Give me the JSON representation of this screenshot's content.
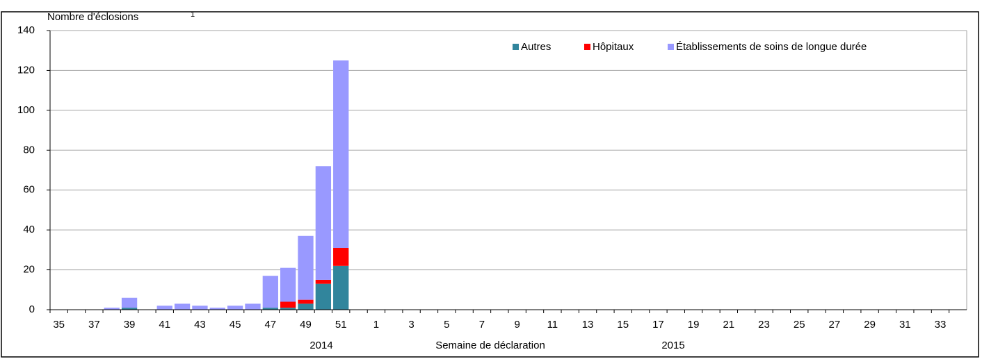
{
  "chart_data": {
    "type": "stacked_bar",
    "y_label": "Nombre d'éclosions",
    "y_label_note": "1",
    "x_label": "Semaine de déclaration",
    "year_labels": [
      "2014",
      "2015"
    ],
    "categories": [
      "35",
      null,
      "37",
      null,
      "39",
      null,
      "41",
      null,
      "43",
      null,
      "45",
      null,
      "47",
      null,
      "49",
      null,
      "51",
      null,
      "1",
      null,
      "3",
      null,
      "5",
      null,
      "7",
      null,
      "9",
      null,
      "11",
      null,
      "13",
      null,
      "15",
      null,
      "17",
      null,
      "19",
      null,
      "21",
      null,
      "23",
      null,
      "25",
      null,
      "27",
      null,
      "29",
      null,
      "31",
      null,
      "33",
      null
    ],
    "series": [
      {
        "name": "Autres",
        "color": "#31859c",
        "values": [
          0,
          0,
          0,
          0,
          1,
          0,
          0,
          0,
          0,
          0,
          0,
          0,
          1,
          1,
          3,
          13,
          22,
          null,
          null,
          null,
          null,
          null,
          null,
          null,
          null,
          null,
          null,
          null,
          null,
          null,
          null,
          null,
          null,
          null,
          null,
          null,
          null,
          null,
          null,
          null,
          null,
          null,
          null,
          null,
          null,
          null,
          null,
          null,
          null,
          null,
          null,
          null
        ]
      },
      {
        "name": "Hôpitaux",
        "color": "#ff0000",
        "values": [
          0,
          0,
          0,
          0,
          0,
          0,
          0,
          0,
          0,
          0,
          0,
          0,
          0,
          3,
          2,
          2,
          9,
          null,
          null,
          null,
          null,
          null,
          null,
          null,
          null,
          null,
          null,
          null,
          null,
          null,
          null,
          null,
          null,
          null,
          null,
          null,
          null,
          null,
          null,
          null,
          null,
          null,
          null,
          null,
          null,
          null,
          null,
          null,
          null,
          null,
          null,
          null
        ]
      },
      {
        "name": "Établissements de soins de longue durée",
        "color": "#9999ff",
        "values": [
          0,
          0,
          0,
          1,
          5,
          0,
          2,
          3,
          2,
          1,
          2,
          3,
          16,
          17,
          32,
          57,
          94,
          null,
          null,
          null,
          null,
          null,
          null,
          null,
          null,
          null,
          null,
          null,
          null,
          null,
          null,
          null,
          null,
          null,
          null,
          null,
          null,
          null,
          null,
          null,
          null,
          null,
          null,
          null,
          null,
          null,
          null,
          null,
          null,
          null,
          null,
          null
        ]
      }
    ],
    "ylim": [
      0,
      140
    ],
    "yticks": [
      0,
      20,
      40,
      60,
      80,
      100,
      120,
      140
    ],
    "grid": true,
    "legend": "top-right"
  }
}
